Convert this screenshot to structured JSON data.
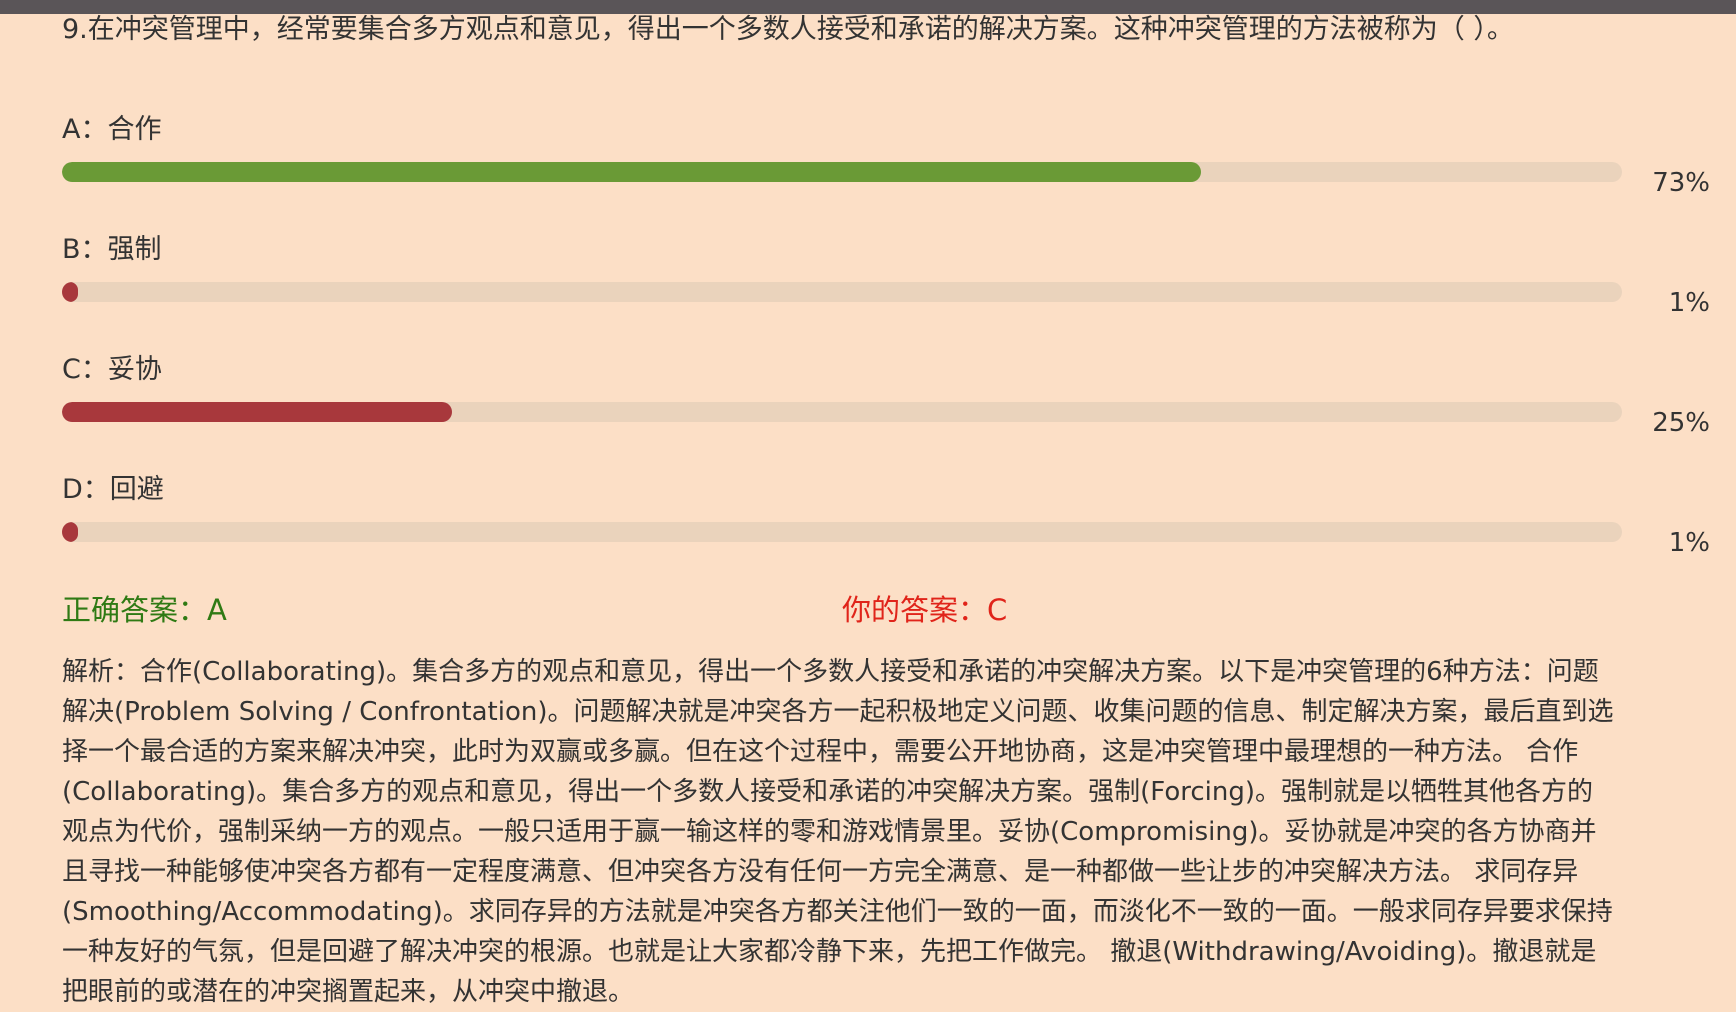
{
  "question": "9.在冲突管理中，经常要集合多方观点和意见，得出一个多数人接受和承诺的解决方案。这种冲突管理的方法被称为（ ）。",
  "options": [
    {
      "label": "A：合作",
      "percent_text": "73%",
      "percent": 73,
      "color": "#6a9a36"
    },
    {
      "label": "B：强制",
      "percent_text": "1%",
      "percent": 1,
      "color": "#a8383c"
    },
    {
      "label": "C：妥协",
      "percent_text": "25%",
      "percent": 25,
      "color": "#a8383c"
    },
    {
      "label": "D：回避",
      "percent_text": "1%",
      "percent": 1,
      "color": "#a8383c"
    }
  ],
  "correct_answer": "正确答案：A",
  "your_answer": "你的答案：C",
  "analysis": "解析：合作(Collaborating)。集合多方的观点和意见，得出一个多数人接受和承诺的冲突解决方案。以下是冲突管理的6种方法：问题解决(Problem Solving / Confrontation)。问题解决就是冲突各方一起积极地定义问题、收集问题的信息、制定解决方案，最后直到选择一个最合适的方案来解决冲突，此时为双赢或多赢。但在这个过程中，需要公开地协商，这是冲突管理中最理想的一种方法。 合作(Collaborating)。集合多方的观点和意见，得出一个多数人接受和承诺的冲突解决方案。强制(Forcing)。强制就是以牺牲其他各方的观点为代价，强制采纳一方的观点。一般只适用于赢一输这样的零和游戏情景里。妥协(Compromising)。妥协就是冲突的各方协商并且寻找一种能够使冲突各方都有一定程度满意、但冲突各方没有任何一方完全满意、是一种都做一些让步的冲突解决方法。 求同存异(Smoothing/Accommodating)。求同存异的方法就是冲突各方都关注他们一致的一面，而淡化不一致的一面。一般求同存异要求保持一种友好的气氛，但是回避了解决冲突的根源。也就是让大家都冷静下来，先把工作做完。 撤退(Withdrawing/Avoiding)。撤退就是把眼前的或潜在的冲突搁置起来，从冲突中撤退。"
}
